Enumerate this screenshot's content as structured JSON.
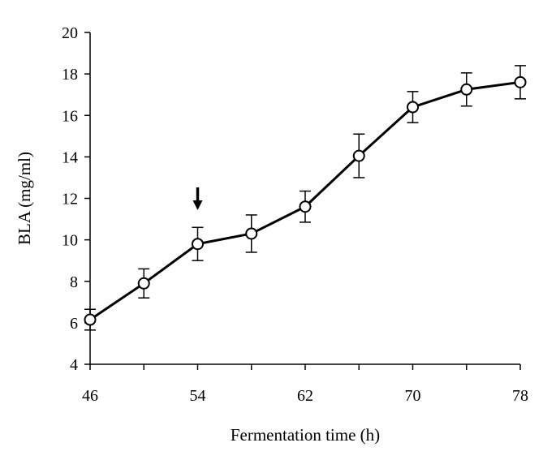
{
  "chart_data": {
    "type": "line",
    "title": "",
    "xlabel": "Fermentation time (h)",
    "ylabel": "BLA (mg/ml)",
    "xlim": [
      46,
      78
    ],
    "ylim": [
      4,
      20
    ],
    "xticks": [
      46,
      54,
      62,
      70,
      78
    ],
    "yticks": [
      4,
      6,
      8,
      10,
      12,
      14,
      16,
      18,
      20
    ],
    "x": [
      46,
      50,
      54,
      58,
      62,
      66,
      70,
      74,
      78
    ],
    "series": [
      {
        "values": [
          6.15,
          7.9,
          9.8,
          10.3,
          11.6,
          14.05,
          16.4,
          17.25,
          17.6
        ],
        "error": [
          0.5,
          0.7,
          0.8,
          0.9,
          0.75,
          1.05,
          0.75,
          0.8,
          0.8
        ]
      }
    ],
    "annotations": [
      {
        "type": "arrow-down",
        "x": 54
      }
    ],
    "grid": false,
    "legend": "none",
    "colors": {
      "line": "#000000",
      "marker_fill": "#ffffff"
    }
  }
}
